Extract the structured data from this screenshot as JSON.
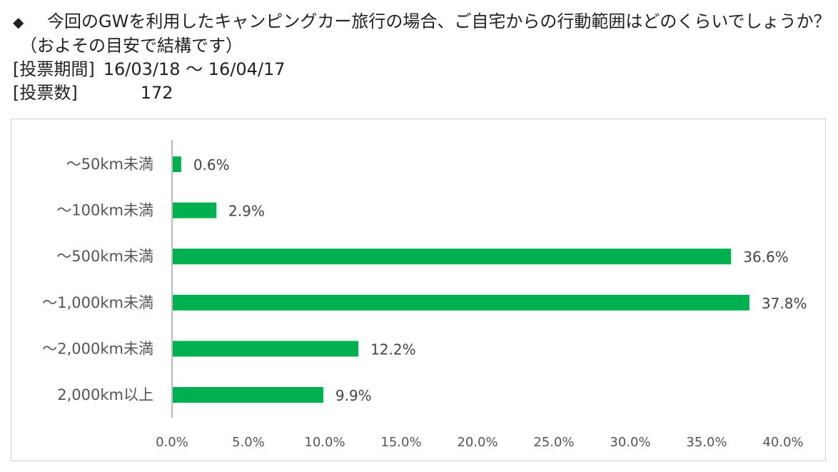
{
  "header": {
    "diamond": "◆",
    "question_line1": "今回のGWを利用したキャンピングカー旅行の場合、ご自宅からの行動範囲はどのくらいでしょうか？",
    "question_line2": "（およその目安で結構です）",
    "period_label": "[投票期間]",
    "period_value": "16/03/18 ～ 16/04/17",
    "votes_label": "[投票数]",
    "votes_value": "172"
  },
  "colors": {
    "bar": "#00b050",
    "axis": "#bfbfbf",
    "frame": "#d0d0d0"
  },
  "chart_data": {
    "type": "bar",
    "orientation": "horizontal",
    "categories": [
      "～50km未満",
      "～100km未満",
      "～500km未満",
      "～1,000km未満",
      "～2,000km未満",
      "2,000km以上"
    ],
    "values": [
      0.6,
      2.9,
      36.6,
      37.8,
      12.2,
      9.9
    ],
    "data_labels": [
      "0.6%",
      "2.9%",
      "36.6%",
      "37.8%",
      "12.2%",
      "9.9%"
    ],
    "xlim": [
      0,
      40
    ],
    "xticks": [
      0,
      5,
      10,
      15,
      20,
      25,
      30,
      35,
      40
    ],
    "xtick_labels": [
      "0.0%",
      "5.0%",
      "10.0%",
      "15.0%",
      "20.0%",
      "25.0%",
      "30.0%",
      "35.0%",
      "40.0%"
    ],
    "grid": false,
    "legend": "none"
  }
}
